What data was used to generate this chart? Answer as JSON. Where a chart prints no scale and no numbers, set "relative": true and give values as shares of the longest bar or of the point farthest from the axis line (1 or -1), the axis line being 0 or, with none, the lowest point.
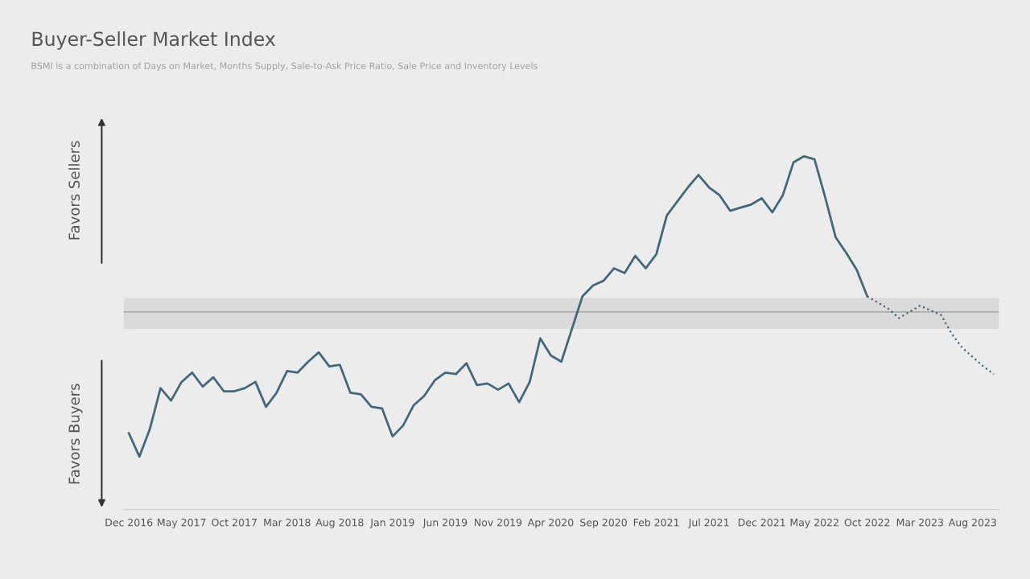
{
  "chart_data": {
    "type": "line",
    "relative": true,
    "title": "Buyer-Seller Market Index",
    "subtitle": "BSMI is a combination of Days on Market, Months Supply, Sale-to-Ask Price Ratio, Sale Price and Inventory Levels",
    "annotations": [
      "Favors Sellers",
      "Favors Buyers"
    ],
    "categories": [
      "Dec 2016",
      null,
      null,
      null,
      null,
      "May 2017",
      null,
      null,
      null,
      null,
      "Oct 2017",
      null,
      null,
      null,
      null,
      "Mar 2018",
      null,
      null,
      null,
      null,
      "Aug 2018",
      null,
      null,
      null,
      null,
      "Jan 2019",
      null,
      null,
      null,
      null,
      "Jun 2019",
      null,
      null,
      null,
      null,
      "Nov 2019",
      null,
      null,
      null,
      null,
      "Apr 2020",
      null,
      null,
      null,
      null,
      "Sep 2020",
      null,
      null,
      null,
      null,
      "Feb 2021",
      null,
      null,
      null,
      null,
      "Jul 2021",
      null,
      null,
      null,
      null,
      "Dec 2021",
      null,
      null,
      null,
      null,
      "May 2022",
      null,
      null,
      null,
      null,
      "Oct 2022",
      null,
      null,
      null,
      null,
      "Mar 2023",
      null,
      null,
      null,
      null,
      "Aug 2023",
      null,
      null
    ],
    "series": [
      {
        "color": "#45677a",
        "line_style": "solid",
        "values": [
          -0.78,
          -0.93,
          -0.75,
          -0.49,
          -0.57,
          -0.45,
          -0.39,
          -0.48,
          -0.42,
          -0.51,
          -0.51,
          -0.49,
          -0.45,
          -0.61,
          -0.52,
          -0.38,
          -0.39,
          -0.32,
          -0.26,
          -0.35,
          -0.34,
          -0.52,
          -0.53,
          -0.61,
          -0.62,
          -0.8,
          -0.73,
          -0.6,
          -0.54,
          -0.44,
          -0.39,
          -0.4,
          -0.33,
          -0.47,
          -0.46,
          -0.5,
          -0.46,
          -0.58,
          -0.45,
          -0.17,
          -0.28,
          -0.32,
          -0.11,
          0.1,
          0.17,
          0.2,
          0.28,
          0.25,
          0.36,
          0.28,
          0.37,
          0.62,
          0.71,
          0.8,
          0.88,
          0.8,
          0.75,
          0.65,
          0.67,
          0.69,
          0.73,
          0.64,
          0.75,
          0.96,
          1.0,
          0.98,
          0.74,
          0.48,
          0.38,
          0.27,
          0.1,
          null,
          null,
          null,
          null,
          null,
          null,
          null,
          null,
          null,
          null,
          null,
          null
        ]
      },
      {
        "color": "#45677a",
        "line_style": "dotted",
        "values": [
          null,
          null,
          null,
          null,
          null,
          null,
          null,
          null,
          null,
          null,
          null,
          null,
          null,
          null,
          null,
          null,
          null,
          null,
          null,
          null,
          null,
          null,
          null,
          null,
          null,
          null,
          null,
          null,
          null,
          null,
          null,
          null,
          null,
          null,
          null,
          null,
          null,
          null,
          null,
          null,
          null,
          null,
          null,
          null,
          null,
          null,
          null,
          null,
          null,
          null,
          null,
          null,
          null,
          null,
          null,
          null,
          null,
          null,
          null,
          null,
          null,
          null,
          null,
          null,
          null,
          null,
          null,
          null,
          null,
          null,
          0.1,
          0.06,
          0.02,
          -0.04,
          0.0,
          0.04,
          0.01,
          -0.02,
          -0.14,
          -0.23,
          -0.29,
          -0.35,
          -0.4
        ]
      }
    ],
    "ref_lines": [
      {
        "axis": "y",
        "value": 0,
        "color": "#9a9a9a"
      }
    ],
    "bands": [
      {
        "axis": "y",
        "from": -0.11,
        "to": 0.09,
        "color": "#dadada"
      }
    ]
  }
}
